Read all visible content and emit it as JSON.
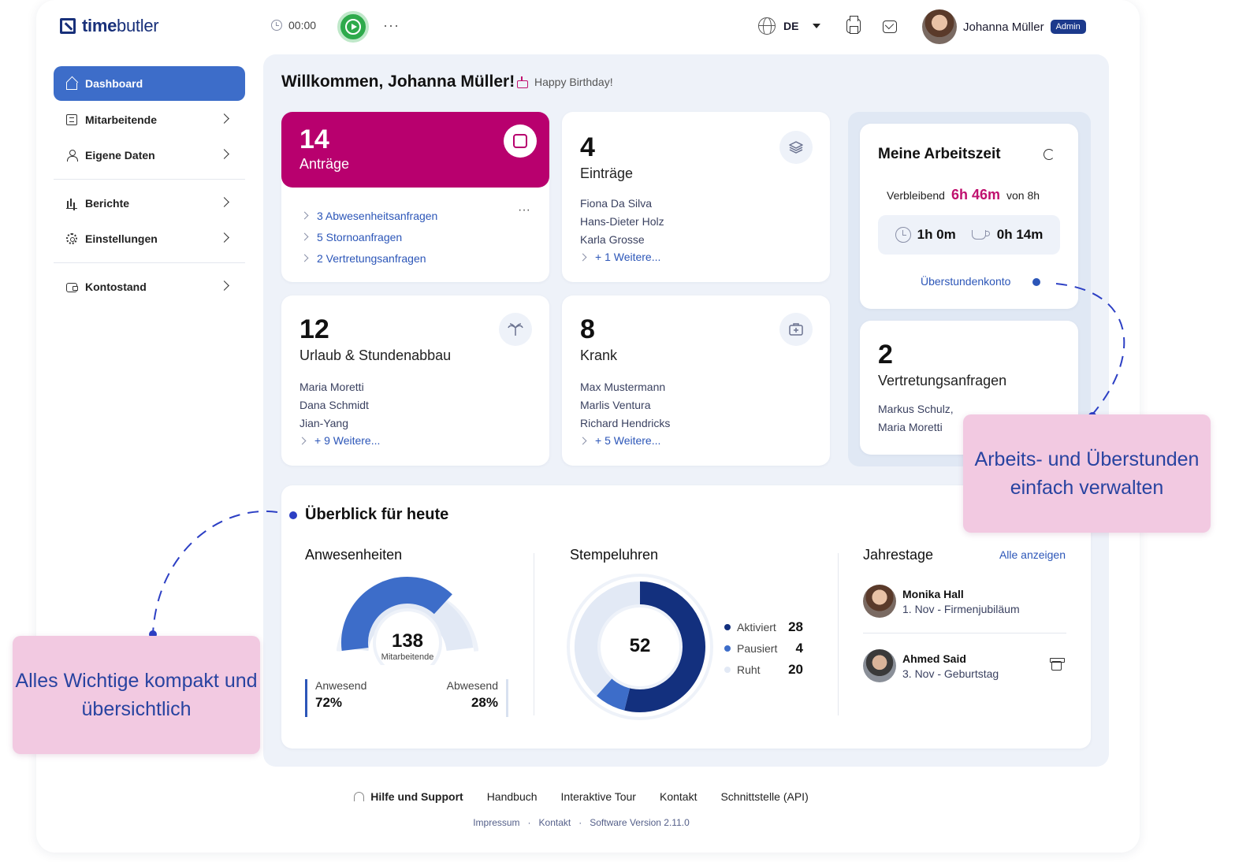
{
  "brand": {
    "name_bold": "time",
    "name_rest": "butler"
  },
  "topbar": {
    "timer": "00:00",
    "more": "···",
    "language": "DE",
    "user_name": "Johanna Müller",
    "user_role": "Admin"
  },
  "sidebar": {
    "items": [
      {
        "label": "Dashboard",
        "icon": "home-icon",
        "active": true
      },
      {
        "label": "Mitarbeitende",
        "icon": "list-icon"
      },
      {
        "label": "Eigene Daten",
        "icon": "user-icon"
      },
      {
        "label": "Berichte",
        "icon": "bar-chart-icon"
      },
      {
        "label": "Einstellungen",
        "icon": "gear-icon"
      },
      {
        "label": "Kontostand",
        "icon": "wallet-icon"
      }
    ]
  },
  "main": {
    "welcome": "Willkommen, Johanna Müller!",
    "birthday": "Happy Birthday!",
    "antraege": {
      "count": "14",
      "label": "Anträge",
      "links": [
        "3 Abwesenheitsanfragen",
        "5 Stornoanfragen",
        "2 Vertretungsanfragen"
      ]
    },
    "eintraege": {
      "count": "4",
      "label": "Einträge",
      "names": [
        "Fiona Da Silva",
        "Hans-Dieter Holz",
        "Karla Grosse"
      ],
      "more": "+ 1 Weitere..."
    },
    "urlaub": {
      "count": "12",
      "label": "Urlaub & Stundenabbau",
      "names": [
        "Maria Moretti",
        "Dana Schmidt",
        "Jian-Yang"
      ],
      "more": "+ 9 Weitere..."
    },
    "krank": {
      "count": "8",
      "label": "Krank",
      "names": [
        "Max Mustermann",
        "Marlis Ventura",
        "Richard Hendricks"
      ],
      "more": "+ 5 Weitere..."
    },
    "arbeitszeit": {
      "title": "Meine Arbeitszeit",
      "remaining_label": "Verbleibend",
      "remaining_value": "6h 46m",
      "of_label": "von 8h",
      "worked": "1h 0m",
      "pause": "0h 14m",
      "link": "Überstundenkonto"
    },
    "vertretung": {
      "count": "2",
      "label": "Vertretungsanfragen",
      "names": [
        "Markus Schulz,",
        "Maria Moretti"
      ]
    }
  },
  "overview": {
    "title": "Überblick für heute",
    "anwesenheiten": {
      "title": "Anwesenheiten",
      "total": "138",
      "unit": "Mitarbeitende",
      "present_label": "Anwesend",
      "present_value": "72%",
      "present_fraction": 0.72,
      "absent_label": "Abwesend",
      "absent_value": "28%"
    },
    "stempeluhren": {
      "title": "Stempeluhren",
      "total": "52",
      "legend": [
        {
          "name": "Aktiviert",
          "value": "28",
          "count": 28,
          "color": "#13307e"
        },
        {
          "name": "Pausiert",
          "value": "4",
          "count": 4,
          "color": "#3d6dc9"
        },
        {
          "name": "Ruht",
          "value": "20",
          "count": 20,
          "color": "#e2e9f5"
        }
      ]
    },
    "jahrestage": {
      "title": "Jahrestage",
      "all_link": "Alle anzeigen",
      "items": [
        {
          "name": "Monika Hall",
          "detail": "1. Nov - Firmenjubiläum"
        },
        {
          "name": "Ahmed Said",
          "detail": "3. Nov - Geburtstag"
        }
      ]
    }
  },
  "callouts": {
    "right": "Arbeits- und Überstunden einfach verwalten",
    "left": "Alles Wichtige kompakt und übersichtlich"
  },
  "footer": {
    "links": [
      "Hilfe und Support",
      "Handbuch",
      "Interaktive Tour",
      "Kontakt",
      "Schnittstelle (API)"
    ],
    "sub": [
      "Impressum",
      "·",
      "Kontakt",
      "·",
      "Software Version 2.11.0"
    ]
  },
  "colors": {
    "brand": "#18307a",
    "accent_blue": "#3d6dc9",
    "magenta": "#b8006e",
    "callout_bg": "#f2c9e1"
  }
}
